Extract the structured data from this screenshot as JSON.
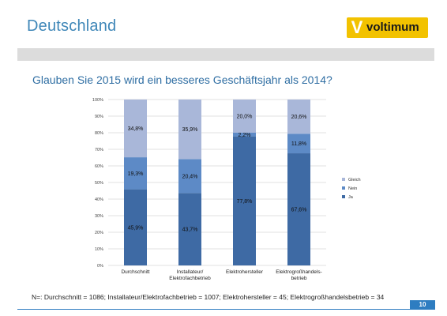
{
  "header": {
    "title": "Deutschland"
  },
  "logo": {
    "mark": "V",
    "text": "voltimum"
  },
  "question": "Glauben Sie 2015 wird ein besseres Geschäftsjahr als 2014?",
  "footnote": "N=: Durchschnitt = 1086; Installateur/Elektrofachbetrieb = 1007; Elektrohersteller = 45; Elektrogroßhandelsbetrieb = 34",
  "page_number": "10",
  "chart_data": {
    "type": "bar",
    "stacked": true,
    "categories": [
      [
        "Durchschnitt"
      ],
      [
        "Installateur/",
        "Elektrofachbetrieb"
      ],
      [
        "Elektrohersteller"
      ],
      [
        "Elektrogroßhandels-",
        "betrieb"
      ]
    ],
    "series": [
      {
        "name": "Ja",
        "color": "#3e6aa4",
        "values": [
          45.9,
          43.7,
          77.8,
          67.6
        ],
        "labels": [
          "45,9%",
          "43,7%",
          "77,8%",
          "67,6%"
        ]
      },
      {
        "name": "Nein",
        "color": "#5d8ac6",
        "values": [
          19.3,
          20.4,
          2.2,
          11.8
        ],
        "labels": [
          "19,3%",
          "20,4%",
          "2,2%",
          "11,8%"
        ]
      },
      {
        "name": "Gleich",
        "color": "#a9b7d9",
        "values": [
          34.8,
          35.9,
          20.0,
          20.6
        ],
        "labels": [
          "34,8%",
          "35,9%",
          "20,0%",
          "20,6%"
        ]
      }
    ],
    "y_ticks": [
      "0%",
      "10%",
      "20%",
      "30%",
      "40%",
      "50%",
      "60%",
      "70%",
      "80%",
      "90%",
      "100%"
    ],
    "ylim": [
      0,
      100
    ],
    "legend_order": [
      "Gleich",
      "Nein",
      "Ja"
    ],
    "legend_position": "right"
  }
}
